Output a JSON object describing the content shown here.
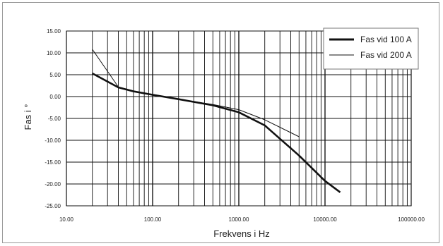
{
  "chart_data": {
    "type": "line",
    "title": "",
    "xlabel": "Frekvens i Hz",
    "ylabel": "Fas i °",
    "x_scale": "log",
    "xlim": [
      10,
      100000
    ],
    "ylim": [
      -25,
      15
    ],
    "x_ticks": [
      "10.00",
      "100.00",
      "1000.00",
      "10000.00",
      "100000.00"
    ],
    "y_ticks": [
      "15.00",
      "10.00",
      "5.00",
      "0.00",
      "-5.00",
      "-10.00",
      "-15.00",
      "-20.00",
      "-25.00"
    ],
    "grid": true,
    "legend_position": "top-right",
    "series": [
      {
        "name": "Fas vid 100 A",
        "line_width": "thick",
        "color": "#111111",
        "x": [
          20,
          40,
          60,
          100,
          200,
          500,
          1000,
          2000,
          5000,
          10000,
          15000
        ],
        "y": [
          5.3,
          2.1,
          1.2,
          0.4,
          -0.6,
          -2.0,
          -3.6,
          -6.6,
          -13.5,
          -19.3,
          -21.9
        ]
      },
      {
        "name": "Fas vid 200 A",
        "line_width": "thin",
        "color": "#111111",
        "x": [
          20,
          40,
          60,
          100,
          200,
          500,
          1000,
          2000,
          5000
        ],
        "y": [
          10.8,
          2.2,
          1.3,
          0.5,
          -0.6,
          -1.8,
          -3.0,
          -5.3,
          -9.2
        ]
      }
    ]
  }
}
